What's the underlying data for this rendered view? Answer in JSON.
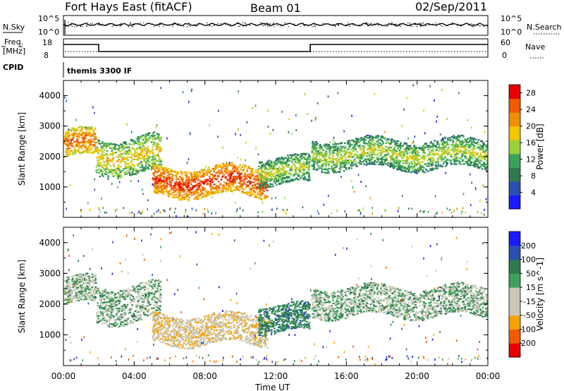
{
  "header": {
    "station": "Fort Hays East (fitACF)",
    "beam": "Beam 01",
    "date": "02/Sep/2011"
  },
  "strip": {
    "nsky_label": "N.Sky",
    "nsky_ticks": [
      "10^5",
      "10^0"
    ],
    "nsearch_label": "N.Search",
    "nsearch_ticks": [
      "10^5",
      "10^0"
    ],
    "freq_label_1": "Freq.",
    "freq_label_2": "[MHz]",
    "freq_ticks": [
      "18",
      "8"
    ],
    "nave_label": "Nave",
    "nave_ticks": [
      "60",
      "0"
    ],
    "cpid_label": "CPID",
    "cpid_value": "themis 3300 IF"
  },
  "colors": {
    "power": [
      "#1a1aff",
      "#2a4fb0",
      "#2f7a4f",
      "#3aa35a",
      "#9ad13a",
      "#f2c600",
      "#f09000",
      "#f05a00",
      "#e80000"
    ],
    "velocity": [
      "#e80000",
      "#f05a00",
      "#f5a300",
      "#c9c6b8",
      "#c9c6b8",
      "#3aa35a",
      "#2f7a4f",
      "#2a4fb0",
      "#1a1aff"
    ]
  },
  "chart_data": [
    {
      "type": "heatmap",
      "title": "",
      "xlabel": "Time UT",
      "ylabel": "Slant Range [km]",
      "x_ticks": [
        "00:00",
        "04:00",
        "08:00",
        "12:00",
        "16:00",
        "20:00",
        "00:00"
      ],
      "y_ticks": [
        "1000",
        "2000",
        "3000",
        "4000"
      ],
      "ylim": [
        0,
        4500
      ],
      "colorbar_label": "Power [dB]",
      "colorbar_ticks": [
        "4",
        "8",
        "12",
        "16",
        "20",
        "24",
        "28"
      ],
      "colorbar_range": [
        0,
        30
      ],
      "echo_regions": [
        {
          "t": [
            0.0,
            1.8
          ],
          "range_km": [
            1900,
            3000
          ],
          "power_db": 22
        },
        {
          "t": [
            1.8,
            5.5
          ],
          "range_km": [
            1300,
            2800
          ],
          "power_db": 16
        },
        {
          "t": [
            5.0,
            11.5
          ],
          "range_km": [
            600,
            1800
          ],
          "power_db": 24
        },
        {
          "t": [
            11.0,
            13.9
          ],
          "range_km": [
            1000,
            2100
          ],
          "power_db": 14
        },
        {
          "t": [
            14.0,
            24.0
          ],
          "range_km": [
            1500,
            2700
          ],
          "power_db": 14
        }
      ]
    },
    {
      "type": "heatmap",
      "title": "",
      "xlabel": "Time UT",
      "ylabel": "Slant Range [km]",
      "x_ticks": [
        "00:00",
        "04:00",
        "08:00",
        "12:00",
        "16:00",
        "20:00",
        "00:00"
      ],
      "y_ticks": [
        "1000",
        "2000",
        "3000",
        "4000"
      ],
      "ylim": [
        0,
        4500
      ],
      "colorbar_label": "Velocity [m s^-1]",
      "colorbar_ticks": [
        "200",
        "100",
        "50",
        "15",
        "-15",
        "-50",
        "-100",
        "-200"
      ],
      "colorbar_range": [
        -250,
        250
      ],
      "echo_regions": [
        {
          "t": [
            0.0,
            1.8
          ],
          "range_km": [
            1900,
            3000
          ],
          "velocity_ms": 0
        },
        {
          "t": [
            1.8,
            5.5
          ],
          "range_km": [
            1300,
            2800
          ],
          "velocity_ms": 0
        },
        {
          "t": [
            5.0,
            11.5
          ],
          "range_km": [
            600,
            1800
          ],
          "velocity_ms": -40
        },
        {
          "t": [
            11.0,
            13.9
          ],
          "range_km": [
            1000,
            2100
          ],
          "velocity_ms": 30
        },
        {
          "t": [
            14.0,
            24.0
          ],
          "range_km": [
            1500,
            2700
          ],
          "velocity_ms": 0
        }
      ]
    }
  ]
}
